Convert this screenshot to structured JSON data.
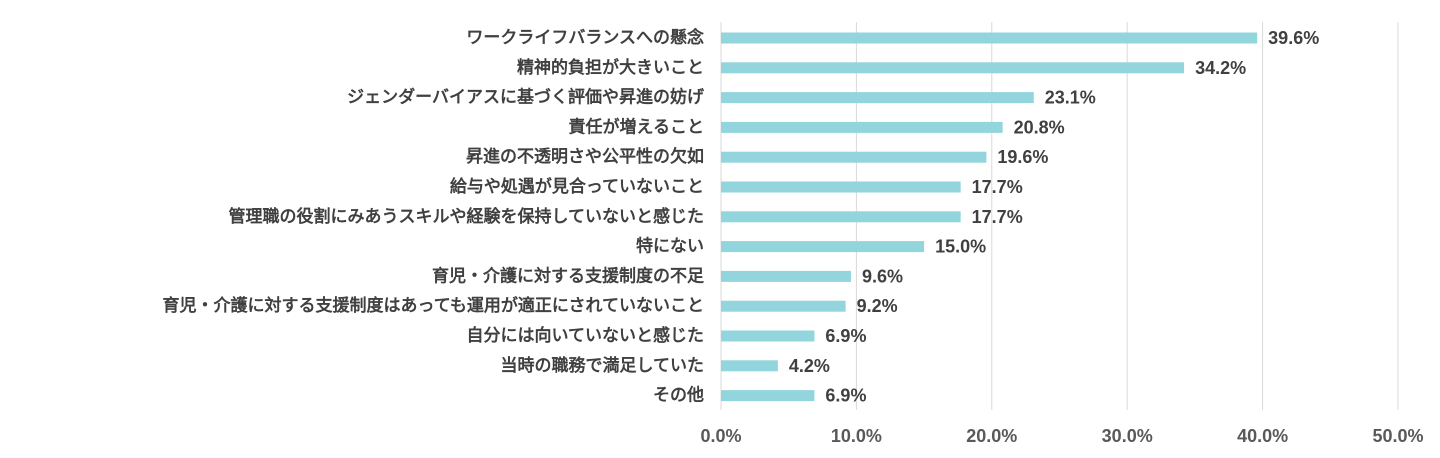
{
  "chart_data": {
    "type": "bar",
    "orientation": "horizontal",
    "title": "",
    "xlabel": "",
    "ylabel": "",
    "xlim": [
      0,
      50
    ],
    "x_ticks": [
      "0.0%",
      "10.0%",
      "20.0%",
      "30.0%",
      "40.0%",
      "50.0%"
    ],
    "grid": true,
    "bar_color": "#92d5dc",
    "categories": [
      "ワークライフバランスへの懸念",
      "精神的負担が大きいこと",
      "ジェンダーバイアスに基づく評価や昇進の妨げ",
      "責任が増えること",
      "昇進の不透明さや公平性の欠如",
      "給与や処遇が見合っていないこと",
      "管理職の役割にみあうスキルや経験を保持していないと感じた",
      "特にない",
      "育児・介護に対する支援制度の不足",
      "育児・介護に対する支援制度はあっても運用が適正にされていないこと",
      "自分には向いていないと感じた",
      "当時の職務で満足していた",
      "その他"
    ],
    "values": [
      39.6,
      34.2,
      23.1,
      20.8,
      19.6,
      17.7,
      17.7,
      15.0,
      9.6,
      9.2,
      6.9,
      4.2,
      6.9
    ],
    "value_labels": [
      "39.6%",
      "34.2%",
      "23.1%",
      "20.8%",
      "19.6%",
      "17.7%",
      "17.7%",
      "15.0%",
      "9.6%",
      "9.2%",
      "6.9%",
      "4.2%",
      "6.9%"
    ]
  }
}
